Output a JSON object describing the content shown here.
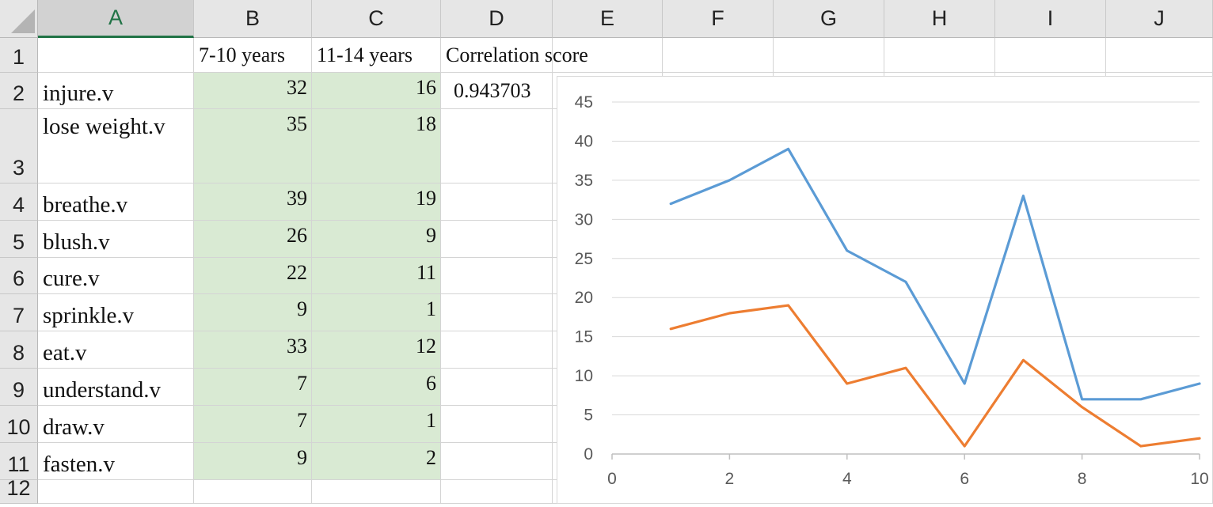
{
  "sheet": {
    "columns": [
      "A",
      "B",
      "C",
      "D",
      "E",
      "F",
      "G",
      "H",
      "I",
      "J"
    ],
    "row_numbers": [
      "1",
      "2",
      "3",
      "4",
      "5",
      "6",
      "7",
      "8",
      "9",
      "10",
      "11",
      "12"
    ],
    "header_row": [
      "",
      "7-10 years",
      "11-14 years",
      "Correlation score"
    ],
    "correlation_value": "0.943703",
    "rows": [
      {
        "word": "injure.v",
        "a": "32",
        "b": "16"
      },
      {
        "word": "lose weight.v",
        "a": "35",
        "b": "18"
      },
      {
        "word": "breathe.v",
        "a": "39",
        "b": "19"
      },
      {
        "word": "blush.v",
        "a": "26",
        "b": "9"
      },
      {
        "word": "cure.v",
        "a": "22",
        "b": "11"
      },
      {
        "word": "sprinkle.v",
        "a": "9",
        "b": "1"
      },
      {
        "word": "eat.v",
        "a": "33",
        "b": "12"
      },
      {
        "word": "understand.v",
        "a": "7",
        "b": "6"
      },
      {
        "word": "draw.v",
        "a": "7",
        "b": "1"
      },
      {
        "word": "fasten.v",
        "a": "9",
        "b": "2"
      }
    ],
    "colors": {
      "data_fill": "#d9ead3",
      "selected_header": "#217346"
    }
  },
  "chart_data": {
    "type": "line",
    "title": "",
    "xlabel": "",
    "ylabel": "",
    "x": [
      1,
      2,
      3,
      4,
      5,
      6,
      7,
      8,
      9,
      10
    ],
    "series": [
      {
        "color": "#5b9bd5",
        "values": [
          32,
          35,
          39,
          26,
          22,
          9,
          33,
          7,
          7,
          9
        ]
      },
      {
        "color": "#ed7d31",
        "values": [
          16,
          18,
          19,
          9,
          11,
          1,
          12,
          6,
          1,
          2
        ]
      }
    ],
    "xlim": [
      0,
      10
    ],
    "ylim": [
      0,
      45
    ],
    "x_ticks": [
      "0",
      "2",
      "4",
      "6",
      "8",
      "10"
    ],
    "y_ticks": [
      "0",
      "5",
      "10",
      "15",
      "20",
      "25",
      "30",
      "35",
      "40",
      "45"
    ],
    "grid": true,
    "legend": "none"
  }
}
